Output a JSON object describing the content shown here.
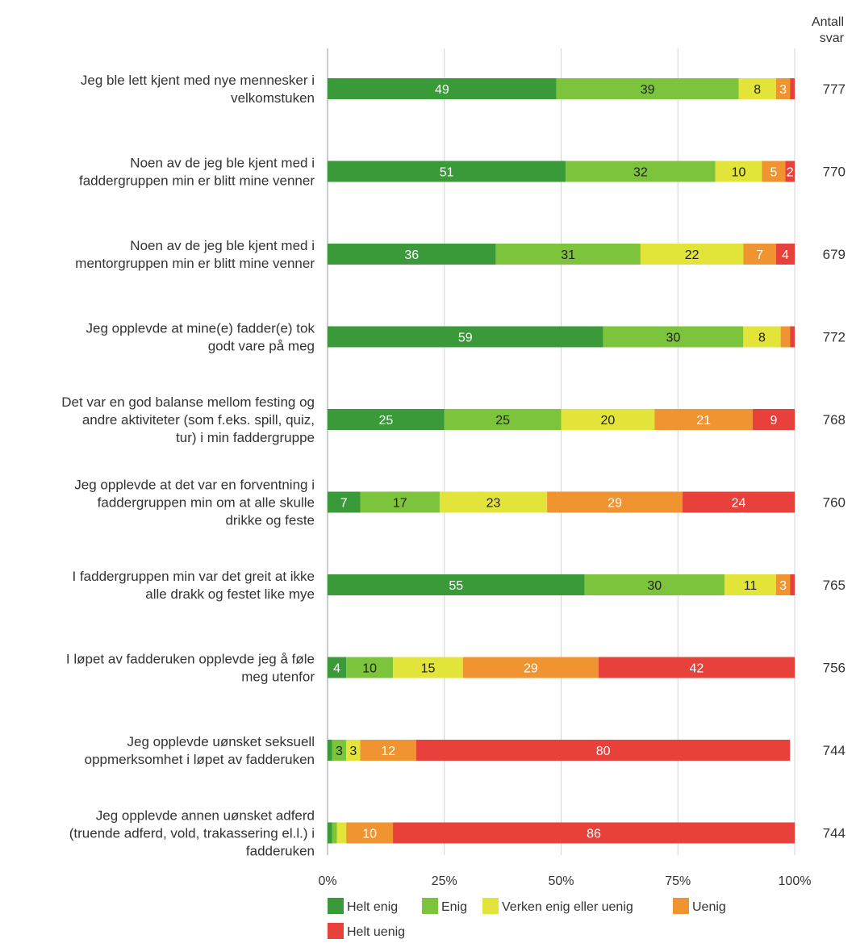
{
  "chart_data": {
    "type": "bar",
    "orientation": "horizontal",
    "stacked": true,
    "count_header": "Antall svar",
    "categories": [
      "Jeg ble lett kjent med nye mennesker i velkomstuken",
      "Noen av de jeg ble kjent med i faddergruppen min er blitt mine venner",
      "Noen av de jeg ble kjent med i mentorgruppen min er blitt mine venner",
      "Jeg opplevde at mine(e) fadder(e) tok godt vare på meg",
      "Det var en god balanse mellom festing og andre aktiviteter (som f.eks. spill, quiz, tur) i min faddergruppe",
      "Jeg opplevde at det var en forventning i faddergruppen min om at alle skulle drikke og feste",
      "I faddergruppen min var det greit at ikke alle drakk og festet like mye",
      "I løpet av fadderuken opplevde jeg å føle meg utenfor",
      "Jeg opplevde uønsket seksuell oppmerksomhet i løpet av fadderuken",
      "Jeg opplevde annen uønsket adferd (truende adferd, vold, trakassering el.l.) i fadderuken"
    ],
    "category_lines": [
      [
        "Jeg ble lett kjent med nye mennesker i",
        "velkomstuken"
      ],
      [
        "Noen av de jeg ble kjent med i",
        "faddergruppen min er blitt mine venner"
      ],
      [
        "Noen av de jeg ble kjent med i",
        "mentorgruppen min er blitt mine venner"
      ],
      [
        "Jeg opplevde at mine(e) fadder(e) tok",
        "godt vare på meg"
      ],
      [
        "Det var en god balanse mellom festing og",
        "andre aktiviteter (som f.eks. spill, quiz,",
        "tur) i min faddergruppe"
      ],
      [
        "Jeg opplevde at det var en forventning i",
        "faddergruppen min om at alle skulle",
        "drikke og feste"
      ],
      [
        "I faddergruppen min var det greit at ikke",
        "alle drakk og festet like mye"
      ],
      [
        "I løpet av fadderuken opplevde jeg å føle",
        "meg utenfor"
      ],
      [
        "Jeg opplevde uønsket seksuell",
        "oppmerksomhet i løpet av fadderuken"
      ],
      [
        "Jeg opplevde annen uønsket adferd",
        "(truende adferd, vold, trakassering el.l.) i",
        "fadderuken"
      ]
    ],
    "counts": [
      "777",
      "770",
      "679",
      "772",
      "768",
      "760",
      "765",
      "756",
      "744",
      "744"
    ],
    "series": [
      {
        "name": "Helt enig",
        "color": "#3a9a3a",
        "label_color": "#ffffff",
        "values": [
          49,
          51,
          36,
          59,
          25,
          7,
          55,
          4,
          1,
          1
        ]
      },
      {
        "name": "Enig",
        "color": "#7cc43b",
        "label_color": "#222222",
        "values": [
          39,
          32,
          31,
          30,
          25,
          17,
          30,
          10,
          3,
          1
        ]
      },
      {
        "name": "Verken enig eller uenig",
        "color": "#e2e43a",
        "label_color": "#222222",
        "values": [
          8,
          10,
          22,
          8,
          20,
          23,
          11,
          15,
          3,
          2
        ]
      },
      {
        "name": "Uenig",
        "color": "#ef9430",
        "label_color": "#ffffff",
        "values": [
          3,
          5,
          7,
          2,
          21,
          29,
          3,
          29,
          12,
          10
        ]
      },
      {
        "name": "Helt uenig",
        "color": "#e8403a",
        "label_color": "#ffffff",
        "values": [
          1,
          2,
          4,
          1,
          9,
          24,
          1,
          42,
          80,
          86
        ]
      }
    ],
    "value_labels": [
      [
        "49",
        "39",
        "8",
        "3",
        ""
      ],
      [
        "51",
        "32",
        "10",
        "5",
        "2"
      ],
      [
        "36",
        "31",
        "22",
        "7",
        "4"
      ],
      [
        "59",
        "30",
        "8",
        "",
        ""
      ],
      [
        "25",
        "25",
        "20",
        "21",
        "9"
      ],
      [
        "7",
        "17",
        "23",
        "29",
        "24"
      ],
      [
        "55",
        "30",
        "11",
        "3",
        ""
      ],
      [
        "4",
        "10",
        "15",
        "29",
        "42"
      ],
      [
        "",
        "3",
        "3",
        "12",
        "80"
      ],
      [
        "",
        "",
        "",
        "10",
        "86"
      ]
    ],
    "xlim": [
      0,
      100
    ],
    "x_ticks": [
      0,
      25,
      50,
      75,
      100
    ],
    "x_tick_labels": [
      "0%",
      "25%",
      "50%",
      "75%",
      "100%"
    ],
    "grid": true,
    "legend_position": "bottom"
  }
}
